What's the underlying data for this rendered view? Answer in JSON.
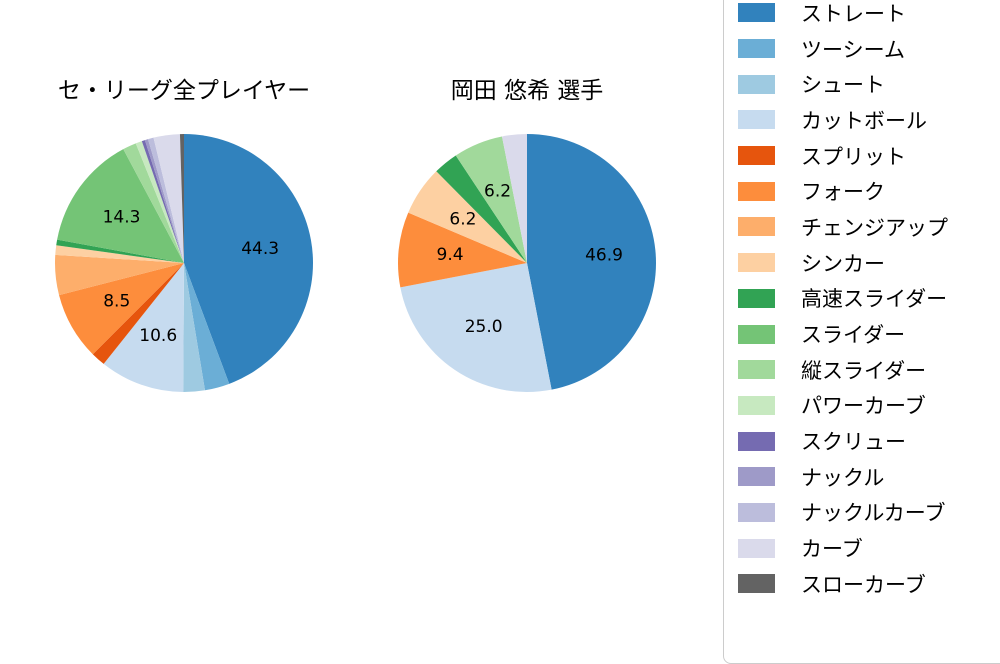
{
  "chart_data": [
    {
      "type": "pie",
      "title": "セ・リーグ全プレイヤー",
      "start_angle": "top",
      "direction": "clockwise",
      "pct_label_distance": 0.6,
      "slices": [
        {
          "label": "ストレート",
          "value": 44.3,
          "pct_label": "44.3",
          "color": "#3182bd"
        },
        {
          "label": "ツーシーム",
          "value": 3.1,
          "pct_label": "",
          "color": "#6baed6"
        },
        {
          "label": "シュート",
          "value": 2.7,
          "pct_label": "",
          "color": "#9ecae1"
        },
        {
          "label": "カットボール",
          "value": 10.6,
          "pct_label": "10.6",
          "color": "#c6dbef"
        },
        {
          "label": "スプリット",
          "value": 1.8,
          "pct_label": "",
          "color": "#e6550d"
        },
        {
          "label": "フォーク",
          "value": 8.5,
          "pct_label": "8.5",
          "color": "#fd8d3c"
        },
        {
          "label": "チェンジアップ",
          "value": 5.0,
          "pct_label": "",
          "color": "#fdae6b"
        },
        {
          "label": "シンカー",
          "value": 1.2,
          "pct_label": "",
          "color": "#fdd0a2"
        },
        {
          "label": "高速スライダー",
          "value": 0.7,
          "pct_label": "",
          "color": "#31a354"
        },
        {
          "label": "スライダー",
          "value": 14.3,
          "pct_label": "14.3",
          "color": "#74c476"
        },
        {
          "label": "縦スライダー",
          "value": 1.7,
          "pct_label": "",
          "color": "#a1d99b"
        },
        {
          "label": "パワーカーブ",
          "value": 0.8,
          "pct_label": "",
          "color": "#c7e9c0"
        },
        {
          "label": "スクリュー",
          "value": 0.4,
          "pct_label": "",
          "color": "#756bb1"
        },
        {
          "label": "ナックル",
          "value": 0.4,
          "pct_label": "",
          "color": "#9e9ac8"
        },
        {
          "label": "ナックルカーブ",
          "value": 0.7,
          "pct_label": "",
          "color": "#bcbddc"
        },
        {
          "label": "カーブ",
          "value": 3.3,
          "pct_label": "",
          "color": "#dadaeb"
        },
        {
          "label": "スローカーブ",
          "value": 0.5,
          "pct_label": "",
          "color": "#636363"
        }
      ]
    },
    {
      "type": "pie",
      "title": "岡田 悠希 選手",
      "start_angle": "top",
      "direction": "clockwise",
      "pct_label_distance": 0.6,
      "slices": [
        {
          "label": "ストレート",
          "value": 46.9,
          "pct_label": "46.9",
          "color": "#3182bd"
        },
        {
          "label": "カットボール",
          "value": 25.0,
          "pct_label": "25.0",
          "color": "#c6dbef"
        },
        {
          "label": "フォーク",
          "value": 9.4,
          "pct_label": "9.4",
          "color": "#fd8d3c"
        },
        {
          "label": "シンカー",
          "value": 6.2,
          "pct_label": "6.2",
          "color": "#fdd0a2"
        },
        {
          "label": "高速スライダー",
          "value": 3.1,
          "pct_label": "",
          "color": "#31a354"
        },
        {
          "label": "縦スライダー",
          "value": 6.2,
          "pct_label": "6.2",
          "color": "#a1d99b"
        },
        {
          "label": "カーブ",
          "value": 3.1,
          "pct_label": "",
          "color": "#dadaeb"
        }
      ]
    }
  ],
  "legend": {
    "position": "right",
    "items": [
      {
        "label": "ストレート",
        "color": "#3182bd"
      },
      {
        "label": "ツーシーム",
        "color": "#6baed6"
      },
      {
        "label": "シュート",
        "color": "#9ecae1"
      },
      {
        "label": "カットボール",
        "color": "#c6dbef"
      },
      {
        "label": "スプリット",
        "color": "#e6550d"
      },
      {
        "label": "フォーク",
        "color": "#fd8d3c"
      },
      {
        "label": "チェンジアップ",
        "color": "#fdae6b"
      },
      {
        "label": "シンカー",
        "color": "#fdd0a2"
      },
      {
        "label": "高速スライダー",
        "color": "#31a354"
      },
      {
        "label": "スライダー",
        "color": "#74c476"
      },
      {
        "label": "縦スライダー",
        "color": "#a1d99b"
      },
      {
        "label": "パワーカーブ",
        "color": "#c7e9c0"
      },
      {
        "label": "スクリュー",
        "color": "#756bb1"
      },
      {
        "label": "ナックル",
        "color": "#9e9ac8"
      },
      {
        "label": "ナックルカーブ",
        "color": "#bcbddc"
      },
      {
        "label": "カーブ",
        "color": "#dadaeb"
      },
      {
        "label": "スローカーブ",
        "color": "#636363"
      }
    ]
  }
}
